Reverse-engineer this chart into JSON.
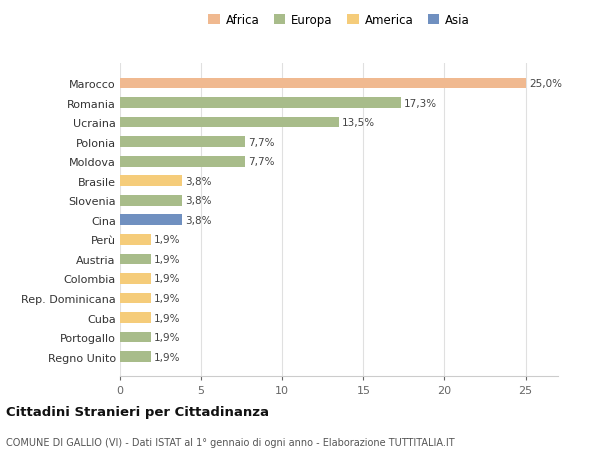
{
  "categories": [
    "Marocco",
    "Romania",
    "Ucraina",
    "Polonia",
    "Moldova",
    "Brasile",
    "Slovenia",
    "Cina",
    "Perù",
    "Austria",
    "Colombia",
    "Rep. Dominicana",
    "Cuba",
    "Portogallo",
    "Regno Unito"
  ],
  "values": [
    25.0,
    17.3,
    13.5,
    7.7,
    7.7,
    3.8,
    3.8,
    3.8,
    1.9,
    1.9,
    1.9,
    1.9,
    1.9,
    1.9,
    1.9
  ],
  "colors": [
    "#f0b990",
    "#a8bc8a",
    "#a8bc8a",
    "#a8bc8a",
    "#a8bc8a",
    "#f5cc7a",
    "#a8bc8a",
    "#7090c0",
    "#f5cc7a",
    "#a8bc8a",
    "#f5cc7a",
    "#f5cc7a",
    "#f5cc7a",
    "#a8bc8a",
    "#a8bc8a"
  ],
  "labels": [
    "25,0%",
    "17,3%",
    "13,5%",
    "7,7%",
    "7,7%",
    "3,8%",
    "3,8%",
    "3,8%",
    "1,9%",
    "1,9%",
    "1,9%",
    "1,9%",
    "1,9%",
    "1,9%",
    "1,9%"
  ],
  "legend": [
    {
      "label": "Africa",
      "color": "#f0b990"
    },
    {
      "label": "Europa",
      "color": "#a8bc8a"
    },
    {
      "label": "America",
      "color": "#f5cc7a"
    },
    {
      "label": "Asia",
      "color": "#7090c0"
    }
  ],
  "title": "Cittadini Stranieri per Cittadinanza",
  "subtitle": "COMUNE DI GALLIO (VI) - Dati ISTAT al 1° gennaio di ogni anno - Elaborazione TUTTITALIA.IT",
  "xlim": [
    0,
    27
  ],
  "background_color": "#ffffff",
  "grid_color": "#e0e0e0"
}
